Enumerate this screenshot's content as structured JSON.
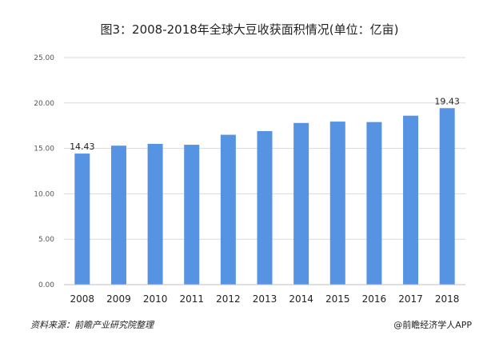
{
  "header": {
    "title": "图3：2008-2018年全球大豆收获面积情况(单位：亿亩)"
  },
  "footer": {
    "source": "资料来源：前瞻产业研究院整理",
    "credit": "@前瞻经济学人APP"
  },
  "colors": {
    "bar": "#5793e3",
    "grid": "#d9d9d9",
    "axis": "#bfbfbf"
  },
  "chart_data": {
    "type": "bar",
    "title": "图3：2008-2018年全球大豆收获面积情况(单位：亿亩)",
    "categories": [
      "2008",
      "2009",
      "2010",
      "2011",
      "2012",
      "2013",
      "2014",
      "2015",
      "2016",
      "2017",
      "2018"
    ],
    "values": [
      14.43,
      15.3,
      15.5,
      15.4,
      16.5,
      16.9,
      17.8,
      17.95,
      17.9,
      18.6,
      19.43
    ],
    "data_labels": [
      {
        "index": 0,
        "text": "14.43"
      },
      {
        "index": 10,
        "text": "19.43"
      }
    ],
    "yticks": [
      "0.00",
      "5.00",
      "10.00",
      "15.00",
      "20.00",
      "25.00"
    ],
    "ylim": [
      0,
      25
    ],
    "grid": true,
    "legend": "none"
  }
}
